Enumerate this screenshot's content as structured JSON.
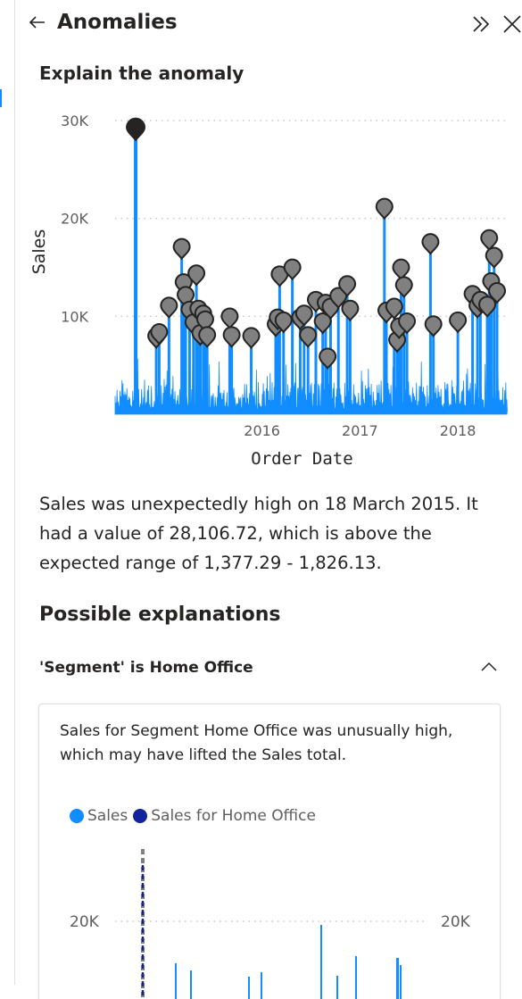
{
  "header": {
    "title": "Anomalies",
    "back_icon": "arrow-left-icon",
    "collapse_icon": "double-chevron-right-icon",
    "close_icon": "close-icon"
  },
  "section_title": "Explain the anomaly",
  "chart_data": [
    {
      "type": "line",
      "xlabel": "Order Date",
      "ylabel": "Sales",
      "ylim": [
        0,
        30000
      ],
      "yticks": [
        10000,
        20000,
        30000
      ],
      "ytick_labels": [
        "10K",
        "20K",
        "30K"
      ],
      "xtick_labels": [
        "2016",
        "2017",
        "2018"
      ],
      "xlim": [
        2015.0,
        2019.0
      ],
      "grid": "dotted-horizontal",
      "series_color": "#118dff",
      "highlighted_anomaly": {
        "x": 2015.21,
        "y": 28106.72
      },
      "anomaly_points": [
        [
          2015.42,
          6800
        ],
        [
          2015.45,
          7200
        ],
        [
          2015.55,
          9900
        ],
        [
          2015.68,
          15900
        ],
        [
          2015.7,
          12300
        ],
        [
          2015.72,
          11000
        ],
        [
          2015.76,
          9500
        ],
        [
          2015.8,
          8200
        ],
        [
          2015.83,
          13200
        ],
        [
          2015.85,
          9600
        ],
        [
          2015.87,
          7100
        ],
        [
          2015.9,
          9100
        ],
        [
          2015.92,
          8500
        ],
        [
          2015.94,
          6900
        ],
        [
          2016.17,
          8800
        ],
        [
          2016.19,
          6900
        ],
        [
          2016.39,
          6800
        ],
        [
          2016.64,
          8000
        ],
        [
          2016.66,
          8700
        ],
        [
          2016.68,
          13100
        ],
        [
          2016.72,
          8400
        ],
        [
          2016.81,
          13800
        ],
        [
          2016.89,
          8700
        ],
        [
          2016.93,
          9100
        ],
        [
          2016.97,
          6900
        ],
        [
          2017.05,
          10500
        ],
        [
          2017.12,
          8300
        ],
        [
          2017.15,
          10200
        ],
        [
          2017.17,
          4700
        ],
        [
          2017.2,
          9800
        ],
        [
          2017.28,
          10900
        ],
        [
          2017.37,
          12100
        ],
        [
          2017.4,
          9600
        ],
        [
          2017.75,
          20000
        ],
        [
          2017.77,
          9400
        ],
        [
          2017.85,
          9800
        ],
        [
          2017.88,
          6400
        ],
        [
          2017.9,
          7800
        ],
        [
          2017.92,
          13800
        ],
        [
          2017.95,
          12000
        ],
        [
          2017.98,
          8300
        ],
        [
          2018.22,
          16400
        ],
        [
          2018.25,
          8000
        ],
        [
          2018.5,
          8400
        ],
        [
          2018.65,
          11100
        ],
        [
          2018.7,
          9900
        ],
        [
          2018.73,
          10500
        ],
        [
          2018.8,
          10000
        ],
        [
          2018.82,
          16800
        ],
        [
          2018.84,
          12400
        ],
        [
          2018.87,
          15000
        ],
        [
          2018.9,
          11400
        ]
      ]
    },
    {
      "type": "bar",
      "legend": [
        {
          "name": "Sales",
          "color": "#118dff"
        },
        {
          "name": "Sales for Home Office",
          "color": "#12239e"
        }
      ],
      "legend_position": "top-left",
      "yticks_left": [
        "20K"
      ],
      "yticks_right": [
        "20K"
      ],
      "grid": "dotted-horizontal"
    }
  ],
  "description": "Sales was unexpectedly high on 18 March 2015. It had a value of 28,106.72, which is above the expected range of 1,377.29 - 1,826.13.",
  "possible_explanations_title": "Possible explanations",
  "explanation": {
    "label": "'Segment' is Home Office",
    "chevron_icon": "chevron-up-icon",
    "text": "Sales for Segment Home Office was unusually high, which may have lifted the Sales total.",
    "legend_sales": "Sales",
    "legend_home_office": "Sales for Home Office",
    "ytick_left": "20K",
    "ytick_right": "20K"
  }
}
